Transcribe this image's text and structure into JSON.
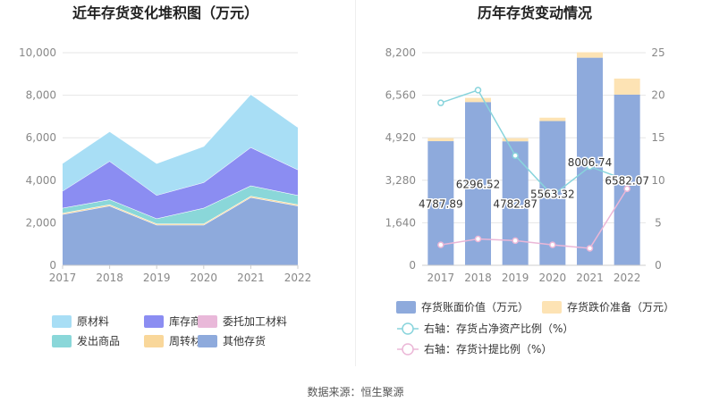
{
  "source": "数据来源：恒生聚源",
  "chart_data": [
    {
      "type": "area",
      "stacked": true,
      "title": "近年存货变化堆积图（万元）",
      "x": [
        "2017",
        "2018",
        "2019",
        "2020",
        "2021",
        "2022"
      ],
      "ylim": [
        0,
        10000
      ],
      "yticks": [
        "10,000",
        "8,000",
        "6,000",
        "4,000",
        "2,000",
        "0"
      ],
      "ytick_values": [
        10000,
        8000,
        6000,
        4000,
        2000,
        0
      ],
      "grid": true,
      "legend_position": "bottom",
      "series": [
        {
          "name": "其他存货",
          "color": "#8eaadc",
          "values": [
            2400,
            2800,
            1900,
            1900,
            3200,
            2800
          ]
        },
        {
          "name": "周转材料",
          "color": "#f9d79a",
          "values": [
            60,
            60,
            60,
            60,
            60,
            60
          ]
        },
        {
          "name": "发出商品",
          "color": "#8ad7d9",
          "values": [
            240,
            240,
            240,
            740,
            490,
            440
          ]
        },
        {
          "name": "委托加工材料",
          "color": "#e9b8d9",
          "values": [
            0,
            0,
            0,
            0,
            0,
            0
          ]
        },
        {
          "name": "库存商品",
          "color": "#8b8df2",
          "values": [
            800,
            1800,
            1100,
            1200,
            1800,
            1200
          ]
        },
        {
          "name": "原材料",
          "color": "#a8def5",
          "values": [
            1300,
            1400,
            1500,
            1700,
            2500,
            2000
          ]
        }
      ],
      "legend_order": [
        "原材料",
        "库存商品",
        "委托加工材料",
        "发出商品",
        "周转材料",
        "其他存货"
      ]
    },
    {
      "type": "bar",
      "stacked": true,
      "title": "历年存货变动情况",
      "categories": [
        "2017",
        "2018",
        "2019",
        "2020",
        "2021",
        "2022"
      ],
      "ylim": [
        0,
        8200
      ],
      "yticks": [
        "8,200",
        "6,560",
        "4,920",
        "3,280",
        "1,640",
        "0"
      ],
      "ytick_values": [
        8200,
        6560,
        4920,
        3280,
        1640,
        0
      ],
      "y2lim": [
        0,
        25
      ],
      "y2ticks": [
        "25",
        "20",
        "15",
        "10",
        "5",
        "0"
      ],
      "y2tick_values": [
        25,
        20,
        15,
        10,
        5,
        0
      ],
      "series": [
        {
          "name": "存货账面价值（万元）",
          "color": "#8eaadc",
          "values": [
            4787.89,
            6296.52,
            4782.87,
            5563.32,
            8006.74,
            6582.07
          ],
          "labels": [
            "4787.89",
            "6296.52",
            "4782.87",
            "5563.32",
            "8006.74",
            "6582.07"
          ]
        },
        {
          "name": "存货跌价准备（万元）",
          "color": "#fde3b4",
          "values": [
            120,
            160,
            120,
            130,
            210,
            620
          ]
        }
      ],
      "lines": [
        {
          "name": "右轴：存货占净资产比例（%）",
          "color": "#88d4dc",
          "values": [
            19.1,
            20.6,
            12.9,
            8.2,
            11.6,
            10.0
          ]
        },
        {
          "name": "右轴：存货计提比例（%）",
          "color": "#ebb7d7",
          "values": [
            2.4,
            3.1,
            2.9,
            2.4,
            2.0,
            9.0
          ]
        }
      ],
      "legend_position": "bottom"
    }
  ]
}
